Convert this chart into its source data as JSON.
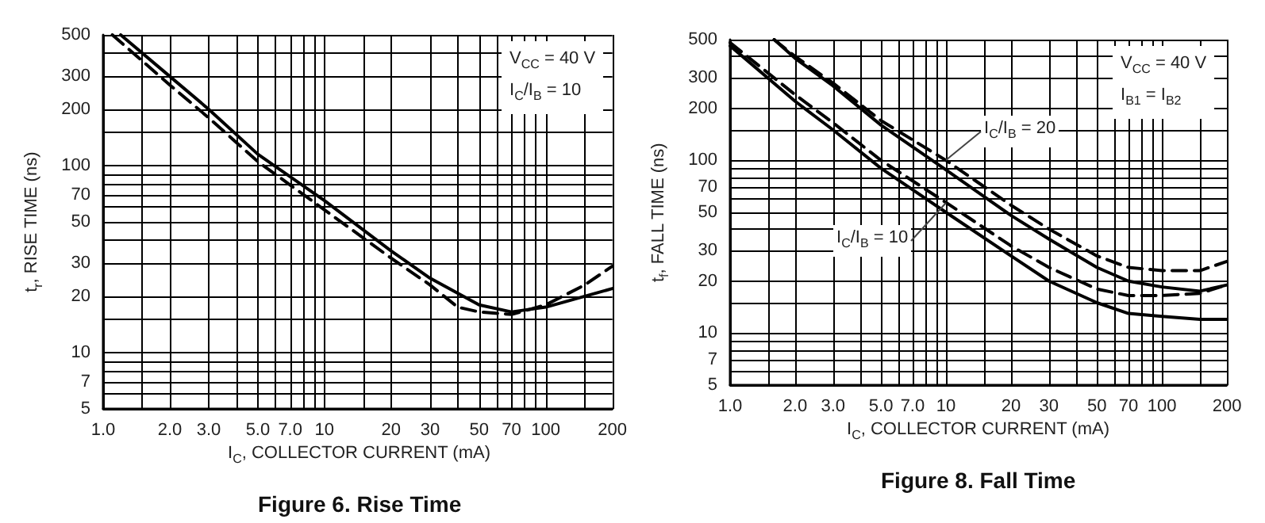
{
  "chart_data": [
    {
      "type": "line",
      "title": "Figure 6. Rise Time",
      "xlabel": "I$_{C}$, COLLECTOR CURRENT (mA)",
      "ylabel": "t$_{r}$, RISE TIME (ns)",
      "annotations": [
        "V$_{CC}$ = 40 V",
        "I$_{C}$/I$_{B}$ = 10"
      ],
      "log": "xy",
      "grid": true,
      "marker": "none",
      "xlim": [
        1,
        200
      ],
      "ylim": [
        5,
        500
      ],
      "xticks": [
        {
          "value": 1,
          "label": "1.0"
        },
        {
          "value": 1.5,
          "label": null
        },
        {
          "value": 2,
          "label": "2.0"
        },
        {
          "value": 3,
          "label": "3.0"
        },
        {
          "value": 4,
          "label": null
        },
        {
          "value": 5,
          "label": "5.0"
        },
        {
          "value": 6,
          "label": null
        },
        {
          "value": 7,
          "label": "7.0"
        },
        {
          "value": 8,
          "label": null
        },
        {
          "value": 9,
          "label": null
        },
        10,
        {
          "value": 15,
          "label": null
        },
        20,
        30,
        {
          "value": 40,
          "label": null
        },
        50,
        {
          "value": 60,
          "label": null
        },
        70,
        {
          "value": 80,
          "label": null
        },
        {
          "value": 90,
          "label": null
        },
        100,
        {
          "value": 150,
          "label": null
        },
        200
      ],
      "yticks": [
        5,
        {
          "value": 6,
          "label": null
        },
        7,
        {
          "value": 8,
          "label": null
        },
        {
          "value": 9,
          "label": null
        },
        10,
        {
          "value": 15,
          "label": null
        },
        20,
        30,
        {
          "value": 40,
          "label": null
        },
        50,
        {
          "value": 60,
          "label": null
        },
        70,
        {
          "value": 80,
          "label": null
        },
        {
          "value": 90,
          "label": null
        },
        100,
        {
          "value": 150,
          "label": null
        },
        200,
        300,
        {
          "value": 400,
          "label": null
        },
        500
      ],
      "series": [
        {
          "color": "#000000",
          "line_style": "solid",
          "x": [
            1.2,
            2,
            3,
            5,
            10,
            20,
            30,
            50,
            70,
            100,
            150,
            200
          ],
          "values": [
            500,
            300,
            200,
            115,
            65,
            35,
            25,
            18,
            16.5,
            17.5,
            20,
            22
          ]
        },
        {
          "color": "#000000",
          "line_style": "dashed",
          "x": [
            1.1,
            2,
            3,
            5,
            10,
            20,
            30,
            40,
            50,
            70,
            100,
            150,
            200
          ],
          "values": [
            500,
            270,
            180,
            105,
            58,
            32,
            23,
            17.5,
            16.5,
            16,
            18,
            23,
            29
          ]
        }
      ]
    },
    {
      "type": "line",
      "title": "Figure 8. Fall Time",
      "xlabel": "I$_{C}$, COLLECTOR CURRENT (mA)",
      "ylabel": "t$_{f}$, FALL TIME (ns)",
      "annotations": [
        "V$_{CC}$ = 40 V",
        "I$_{B1}$ = I$_{B2}$",
        {
          "text": "I$_{C}$/I$_{B}$ = 20",
          "x": 10,
          "y": 100
        },
        {
          "text": "I$_{C}$/I$_{B}$ = 10",
          "x": 10,
          "y": 57
        }
      ],
      "log": "xy",
      "grid": true,
      "marker": "none",
      "xlim": [
        1,
        200
      ],
      "ylim": [
        5,
        500
      ],
      "xticks": [
        {
          "value": 1,
          "label": "1.0"
        },
        {
          "value": 1.5,
          "label": null
        },
        {
          "value": 2,
          "label": "2.0"
        },
        {
          "value": 3,
          "label": "3.0"
        },
        {
          "value": 4,
          "label": null
        },
        {
          "value": 5,
          "label": "5.0"
        },
        {
          "value": 6,
          "label": null
        },
        {
          "value": 7,
          "label": "7.0"
        },
        {
          "value": 8,
          "label": null
        },
        {
          "value": 9,
          "label": null
        },
        10,
        {
          "value": 15,
          "label": null
        },
        20,
        30,
        {
          "value": 40,
          "label": null
        },
        50,
        {
          "value": 60,
          "label": null
        },
        70,
        {
          "value": 80,
          "label": null
        },
        {
          "value": 90,
          "label": null
        },
        100,
        {
          "value": 150,
          "label": null
        },
        200
      ],
      "yticks": [
        5,
        {
          "value": 6,
          "label": null
        },
        7,
        {
          "value": 8,
          "label": null
        },
        {
          "value": 9,
          "label": null
        },
        10,
        {
          "value": 15,
          "label": null
        },
        20,
        30,
        {
          "value": 40,
          "label": null
        },
        50,
        {
          "value": 60,
          "label": null
        },
        70,
        {
          "value": 80,
          "label": null
        },
        {
          "value": 90,
          "label": null
        },
        100,
        {
          "value": 150,
          "label": null
        },
        200,
        300,
        {
          "value": 400,
          "label": null
        },
        500
      ],
      "series": [
        {
          "color": "#000000",
          "line_style": "solid",
          "x": [
            1,
            2,
            3,
            5,
            10,
            20,
            30,
            50,
            70,
            100,
            150,
            200
          ],
          "values": [
            460,
            220,
            150,
            90,
            50,
            28,
            20,
            15,
            13,
            12.5,
            12,
            12
          ]
        },
        {
          "color": "#000000",
          "line_style": "dashed",
          "x": [
            1,
            2,
            3,
            5,
            10,
            20,
            30,
            50,
            70,
            100,
            150,
            200
          ],
          "values": [
            480,
            240,
            165,
            100,
            57,
            32,
            24,
            18,
            16.5,
            16.5,
            17,
            19
          ]
        },
        {
          "color": "#000000",
          "line_style": "solid",
          "x": [
            1.6,
            2,
            3,
            5,
            10,
            20,
            30,
            50,
            70,
            100,
            150,
            200
          ],
          "values": [
            500,
            390,
            270,
            160,
            88,
            48,
            35,
            24,
            20,
            18.5,
            17.5,
            19
          ]
        },
        {
          "color": "#000000",
          "line_style": "dashed",
          "x": [
            1.6,
            2,
            3,
            5,
            10,
            20,
            30,
            50,
            70,
            100,
            150,
            200
          ],
          "values": [
            500,
            400,
            280,
            170,
            100,
            55,
            40,
            28,
            24,
            23,
            23,
            26
          ]
        }
      ]
    }
  ]
}
